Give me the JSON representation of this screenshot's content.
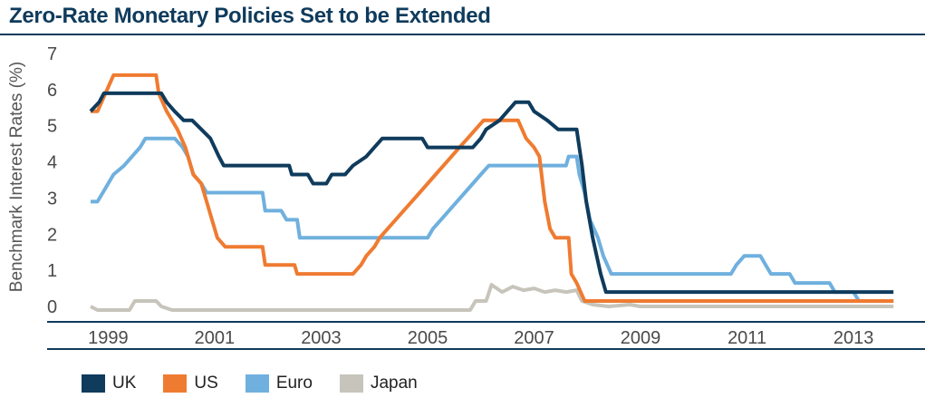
{
  "title": "Zero-Rate Monetary Policies Set to be Extended",
  "chart_data": {
    "type": "line",
    "title": "Zero-Rate Monetary Policies Set to be Extended",
    "xlabel": "",
    "ylabel": "Benchmark Interest Rates (%)",
    "xlim": [
      1998.5,
      2013.9
    ],
    "ylim": [
      -0.2,
      7
    ],
    "yticks": [
      0,
      1,
      2,
      3,
      4,
      5,
      6,
      7
    ],
    "xticks": [
      1999,
      2001,
      2003,
      2005,
      2007,
      2009,
      2011,
      2013
    ],
    "grid": false,
    "legend_position": "bottom-left",
    "series": [
      {
        "name": "UK",
        "color": "#0f3b5c",
        "points": [
          [
            1998.67,
            5.5
          ],
          [
            1998.83,
            5.75
          ],
          [
            1998.92,
            6.0
          ],
          [
            2000.0,
            6.0
          ],
          [
            2000.1,
            5.75
          ],
          [
            2000.25,
            5.5
          ],
          [
            2000.42,
            5.25
          ],
          [
            2000.58,
            5.25
          ],
          [
            2000.75,
            5.0
          ],
          [
            2000.92,
            4.75
          ],
          [
            2001.0,
            4.5
          ],
          [
            2001.08,
            4.25
          ],
          [
            2001.17,
            4.0
          ],
          [
            2002.4,
            4.0
          ],
          [
            2002.45,
            3.75
          ],
          [
            2002.75,
            3.75
          ],
          [
            2002.85,
            3.5
          ],
          [
            2003.1,
            3.5
          ],
          [
            2003.2,
            3.75
          ],
          [
            2003.45,
            3.75
          ],
          [
            2003.6,
            4.0
          ],
          [
            2003.85,
            4.25
          ],
          [
            2004.0,
            4.5
          ],
          [
            2004.15,
            4.75
          ],
          [
            2004.9,
            4.75
          ],
          [
            2005.0,
            4.5
          ],
          [
            2005.75,
            4.5
          ],
          [
            2005.85,
            4.5
          ],
          [
            2006.0,
            4.75
          ],
          [
            2006.1,
            5.0
          ],
          [
            2006.35,
            5.25
          ],
          [
            2006.5,
            5.5
          ],
          [
            2006.65,
            5.75
          ],
          [
            2006.9,
            5.75
          ],
          [
            2007.0,
            5.5
          ],
          [
            2007.25,
            5.25
          ],
          [
            2007.45,
            5.0
          ],
          [
            2007.8,
            5.0
          ],
          [
            2007.9,
            4.0
          ],
          [
            2007.98,
            3.0
          ],
          [
            2008.1,
            2.0
          ],
          [
            2008.25,
            1.0
          ],
          [
            2008.35,
            0.5
          ],
          [
            2013.75,
            0.5
          ]
        ]
      },
      {
        "name": "US",
        "color": "#ef7b31",
        "points": [
          [
            1998.67,
            5.5
          ],
          [
            1998.8,
            5.5
          ],
          [
            1998.95,
            6.0
          ],
          [
            1999.1,
            6.5
          ],
          [
            1999.9,
            6.5
          ],
          [
            1999.95,
            6.0
          ],
          [
            2000.1,
            5.5
          ],
          [
            2000.3,
            5.0
          ],
          [
            2000.45,
            4.5
          ],
          [
            2000.6,
            3.75
          ],
          [
            2000.75,
            3.5
          ],
          [
            2000.85,
            3.0
          ],
          [
            2000.95,
            2.5
          ],
          [
            2001.05,
            2.0
          ],
          [
            2001.2,
            1.75
          ],
          [
            2001.9,
            1.75
          ],
          [
            2001.95,
            1.25
          ],
          [
            2002.5,
            1.25
          ],
          [
            2002.55,
            1.0
          ],
          [
            2003.6,
            1.0
          ],
          [
            2003.75,
            1.25
          ],
          [
            2003.85,
            1.5
          ],
          [
            2004.0,
            1.75
          ],
          [
            2004.1,
            2.0
          ],
          [
            2004.25,
            2.25
          ],
          [
            2004.4,
            2.5
          ],
          [
            2004.55,
            2.75
          ],
          [
            2004.7,
            3.0
          ],
          [
            2004.85,
            3.25
          ],
          [
            2005.0,
            3.5
          ],
          [
            2005.15,
            3.75
          ],
          [
            2005.3,
            4.0
          ],
          [
            2005.45,
            4.25
          ],
          [
            2005.6,
            4.5
          ],
          [
            2005.75,
            4.75
          ],
          [
            2005.9,
            5.0
          ],
          [
            2006.05,
            5.25
          ],
          [
            2006.7,
            5.25
          ],
          [
            2006.85,
            4.75
          ],
          [
            2007.0,
            4.5
          ],
          [
            2007.1,
            4.25
          ],
          [
            2007.2,
            3.0
          ],
          [
            2007.3,
            2.25
          ],
          [
            2007.4,
            2.0
          ],
          [
            2007.65,
            2.0
          ],
          [
            2007.7,
            1.0
          ],
          [
            2007.8,
            0.75
          ],
          [
            2007.95,
            0.25
          ],
          [
            2013.75,
            0.25
          ]
        ]
      },
      {
        "name": "Euro",
        "color": "#6fb0de",
        "points": [
          [
            1998.67,
            3.0
          ],
          [
            1998.8,
            3.0
          ],
          [
            1998.9,
            3.25
          ],
          [
            1999.0,
            3.5
          ],
          [
            1999.1,
            3.75
          ],
          [
            1999.3,
            4.0
          ],
          [
            1999.45,
            4.25
          ],
          [
            1999.6,
            4.5
          ],
          [
            1999.7,
            4.75
          ],
          [
            2000.25,
            4.75
          ],
          [
            2000.4,
            4.5
          ],
          [
            2000.5,
            4.25
          ],
          [
            2000.6,
            3.75
          ],
          [
            2000.75,
            3.5
          ],
          [
            2000.85,
            3.25
          ],
          [
            2001.0,
            3.25
          ],
          [
            2001.9,
            3.25
          ],
          [
            2001.95,
            2.75
          ],
          [
            2002.25,
            2.75
          ],
          [
            2002.35,
            2.5
          ],
          [
            2002.55,
            2.5
          ],
          [
            2002.6,
            2.0
          ],
          [
            2005.0,
            2.0
          ],
          [
            2005.1,
            2.25
          ],
          [
            2005.25,
            2.5
          ],
          [
            2005.4,
            2.75
          ],
          [
            2005.55,
            3.0
          ],
          [
            2005.7,
            3.25
          ],
          [
            2005.85,
            3.5
          ],
          [
            2006.0,
            3.75
          ],
          [
            2006.15,
            4.0
          ],
          [
            2006.3,
            4.0
          ],
          [
            2007.6,
            4.0
          ],
          [
            2007.65,
            4.25
          ],
          [
            2007.8,
            4.25
          ],
          [
            2007.85,
            3.75
          ],
          [
            2007.95,
            3.25
          ],
          [
            2008.05,
            2.5
          ],
          [
            2008.2,
            2.0
          ],
          [
            2008.3,
            1.5
          ],
          [
            2008.45,
            1.0
          ],
          [
            2010.7,
            1.0
          ],
          [
            2010.8,
            1.25
          ],
          [
            2010.95,
            1.5
          ],
          [
            2011.25,
            1.5
          ],
          [
            2011.35,
            1.25
          ],
          [
            2011.45,
            1.0
          ],
          [
            2011.8,
            1.0
          ],
          [
            2011.9,
            0.75
          ],
          [
            2012.55,
            0.75
          ],
          [
            2012.65,
            0.5
          ],
          [
            2013.0,
            0.5
          ],
          [
            2013.1,
            0.25
          ],
          [
            2013.75,
            0.25
          ]
        ]
      },
      {
        "name": "Japan",
        "color": "#c7c5bb",
        "points": [
          [
            1998.67,
            0.1
          ],
          [
            1998.8,
            0.0
          ],
          [
            1999.4,
            0.0
          ],
          [
            1999.5,
            0.25
          ],
          [
            1999.9,
            0.25
          ],
          [
            2000.0,
            0.1
          ],
          [
            2000.2,
            0.0
          ],
          [
            2005.8,
            0.0
          ],
          [
            2005.9,
            0.25
          ],
          [
            2006.1,
            0.25
          ],
          [
            2006.2,
            0.7
          ],
          [
            2006.4,
            0.5
          ],
          [
            2006.6,
            0.65
          ],
          [
            2006.8,
            0.55
          ],
          [
            2007.0,
            0.6
          ],
          [
            2007.2,
            0.5
          ],
          [
            2007.4,
            0.55
          ],
          [
            2007.6,
            0.5
          ],
          [
            2007.8,
            0.55
          ],
          [
            2007.9,
            0.25
          ],
          [
            2008.1,
            0.15
          ],
          [
            2008.4,
            0.1
          ],
          [
            2008.8,
            0.15
          ],
          [
            2009.0,
            0.1
          ],
          [
            2013.75,
            0.1
          ]
        ]
      }
    ]
  }
}
